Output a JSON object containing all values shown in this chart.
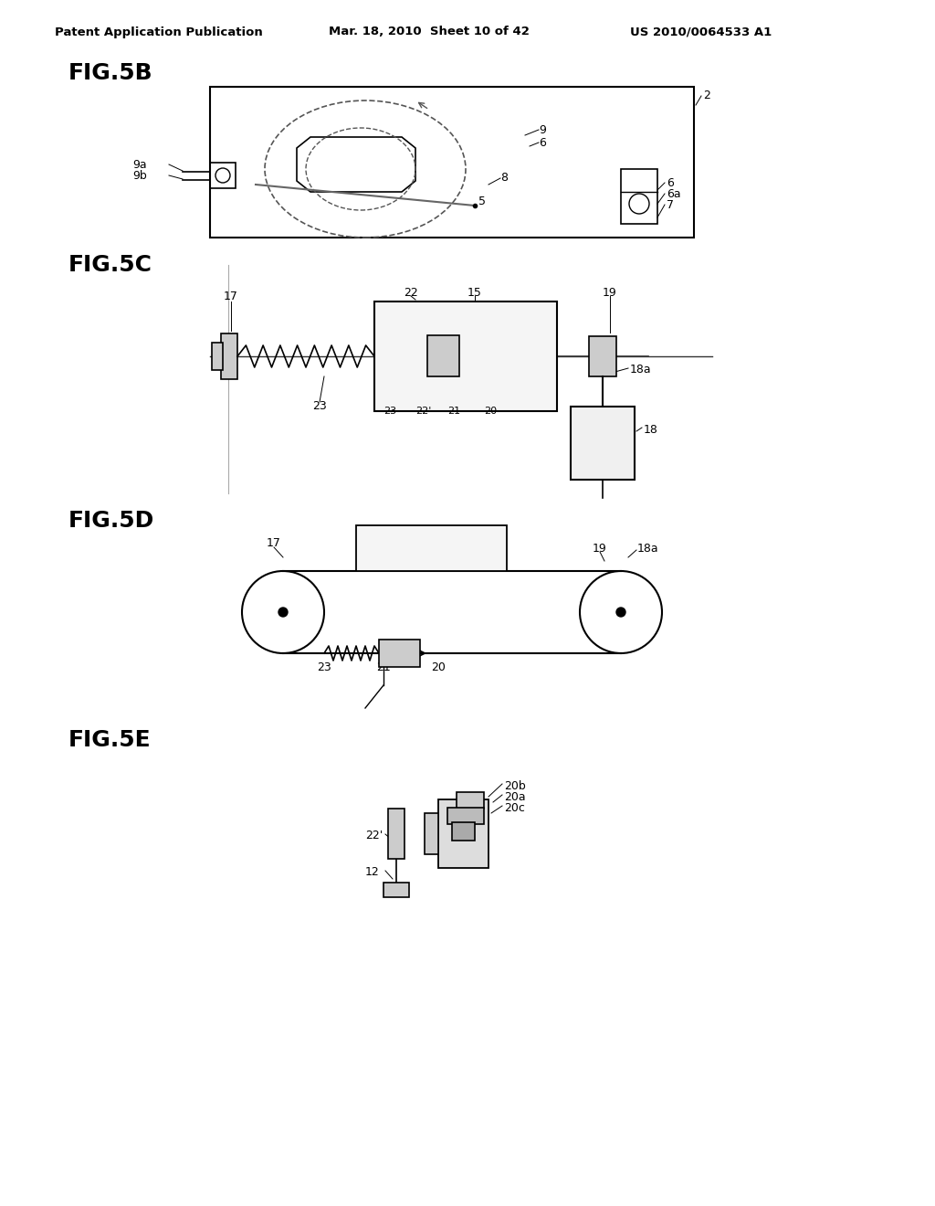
{
  "header_left": "Patent Application Publication",
  "header_mid": "Mar. 18, 2010  Sheet 10 of 42",
  "header_right": "US 2010/0064533 A1",
  "bg_color": "#ffffff",
  "fig_labels": [
    "FIG.5B",
    "FIG.5C",
    "FIG.5D",
    "FIG.5E"
  ],
  "line_color": "#000000",
  "gray_color": "#888888"
}
